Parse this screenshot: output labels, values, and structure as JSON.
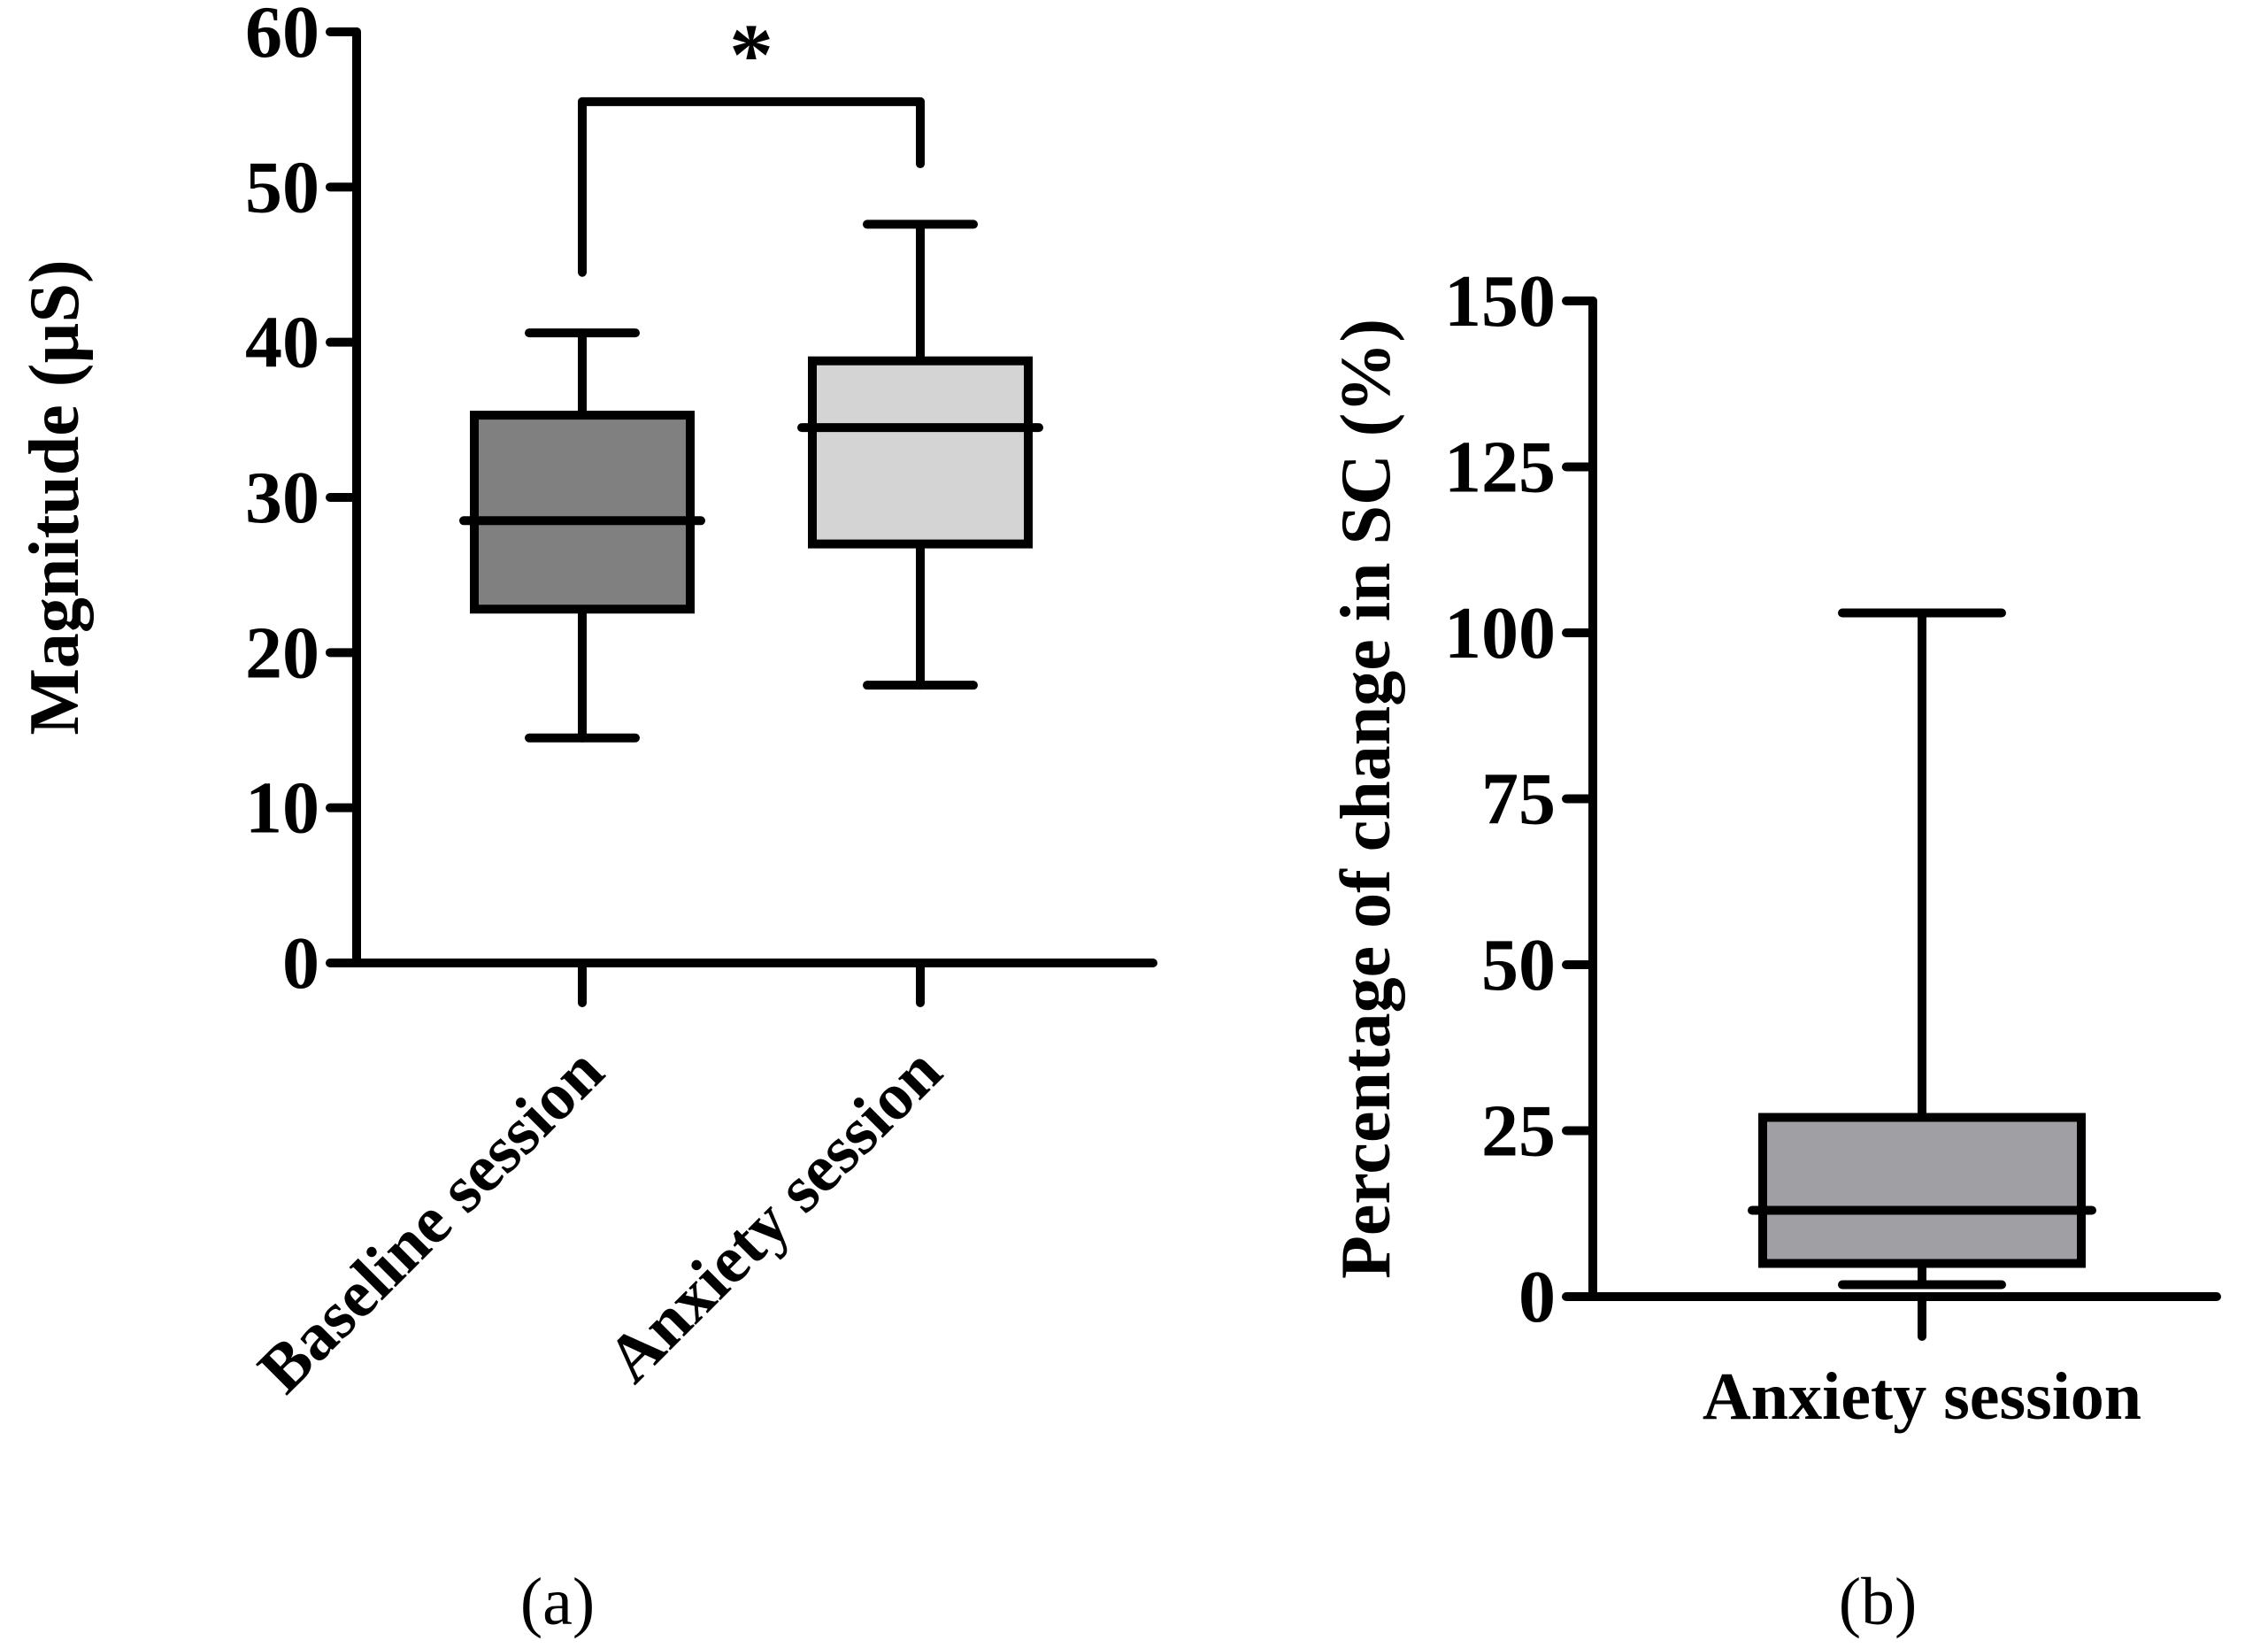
{
  "chart_data": [
    {
      "type": "box",
      "panel_label": "(a)",
      "ylabel": "Magnitude (µS)",
      "ylim": [
        0,
        60
      ],
      "yticks": [
        0,
        10,
        20,
        30,
        40,
        50,
        60
      ],
      "categories": [
        "Baseline session",
        "Anxiety session"
      ],
      "boxes": [
        {
          "name": "Baseline session",
          "whisker_low": 14.5,
          "q1": 22.8,
          "median": 28.5,
          "q3": 35.3,
          "whisker_high": 40.6,
          "color": "#808080"
        },
        {
          "name": "Anxiety session",
          "whisker_low": 17.9,
          "q1": 27.0,
          "median": 34.5,
          "q3": 38.8,
          "whisker_high": 47.6,
          "color": "#d4d4d4"
        }
      ],
      "significance": {
        "label": "*",
        "between": [
          "Baseline session",
          "Anxiety session"
        ],
        "y": 55.5
      }
    },
    {
      "type": "box",
      "panel_label": "(b)",
      "ylabel": "Percentage of change in SC (%)",
      "ylim": [
        0,
        150
      ],
      "yticks": [
        0,
        25,
        50,
        75,
        100,
        125,
        150
      ],
      "categories": [
        "Anxiety session"
      ],
      "boxes": [
        {
          "name": "Anxiety session",
          "whisker_low": 1.8,
          "q1": 5.0,
          "median": 13.0,
          "q3": 27.0,
          "whisker_high": 103.0,
          "color": "#a0a0a4"
        }
      ]
    }
  ]
}
